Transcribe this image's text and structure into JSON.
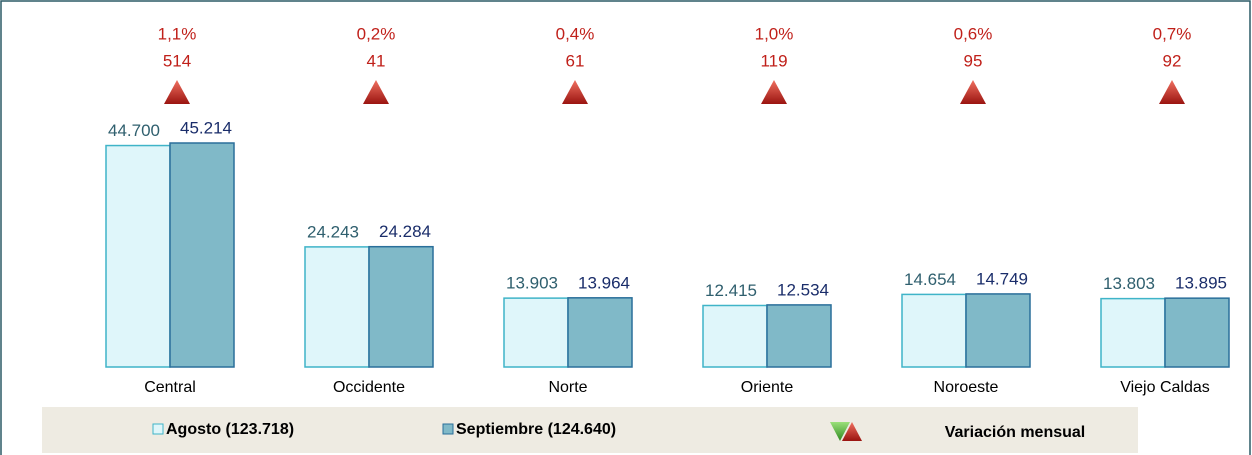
{
  "chart_data": {
    "type": "bar",
    "categories": [
      "Central",
      "Occidente",
      "Norte",
      "Oriente",
      "Noroeste",
      "Viejo Caldas"
    ],
    "series": [
      {
        "name": "Agosto (123.718)",
        "color": "#dff6fa",
        "values": [
          44700,
          24243,
          13903,
          12415,
          14654,
          13803
        ],
        "value_labels": [
          "44.700",
          "24.243",
          "13.903",
          "12.415",
          "14.654",
          "13.803"
        ]
      },
      {
        "name": "Septiembre (124.640)",
        "color": "#80b9c8",
        "values": [
          45214,
          24284,
          13964,
          12534,
          14749,
          13895
        ],
        "value_labels": [
          "45.214",
          "24.284",
          "13.964",
          "12.534",
          "14.749",
          "13.895"
        ]
      }
    ],
    "variation": {
      "name": "Variación mensual",
      "color": "#c0201a",
      "values": [
        514,
        41,
        61,
        119,
        95,
        92
      ],
      "percent": [
        1.1,
        0.2,
        0.4,
        1.0,
        0.6,
        0.7
      ],
      "percent_labels": [
        "1,1%",
        "0,2%",
        "0,4%",
        "1,0%",
        "0,6%",
        "0,7%"
      ]
    }
  }
}
